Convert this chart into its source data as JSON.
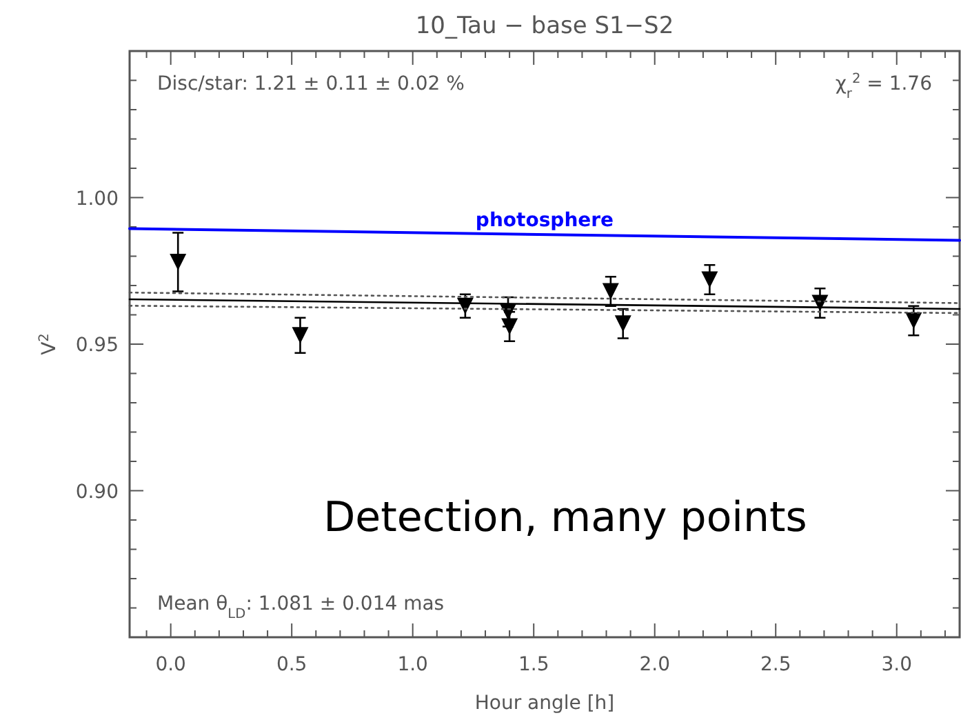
{
  "chart_data": {
    "type": "scatter",
    "title": "10_Tau − base S1−S2",
    "xlabel": "Hour angle [h]",
    "ylabel": "V$^{2}$",
    "xlim": [
      -0.17,
      3.26
    ],
    "ylim": [
      0.85,
      1.05
    ],
    "xticks": [
      {
        "value": -0.1,
        "label": null
      },
      {
        "value": 0,
        "label": "0.0"
      },
      {
        "value": 0.1,
        "label": null
      },
      {
        "value": 0.2,
        "label": null
      },
      {
        "value": 0.3,
        "label": null
      },
      {
        "value": 0.4,
        "label": null
      },
      {
        "value": 0.5,
        "label": "0.5"
      },
      {
        "value": 0.6,
        "label": null
      },
      {
        "value": 0.7,
        "label": null
      },
      {
        "value": 0.8,
        "label": null
      },
      {
        "value": 0.9,
        "label": null
      },
      {
        "value": 1,
        "label": "1.0"
      },
      {
        "value": 1.1,
        "label": null
      },
      {
        "value": 1.2,
        "label": null
      },
      {
        "value": 1.3,
        "label": null
      },
      {
        "value": 1.4,
        "label": null
      },
      {
        "value": 1.5,
        "label": "1.5"
      },
      {
        "value": 1.6,
        "label": null
      },
      {
        "value": 1.7,
        "label": null
      },
      {
        "value": 1.8,
        "label": null
      },
      {
        "value": 1.9,
        "label": null
      },
      {
        "value": 2,
        "label": "2.0"
      },
      {
        "value": 2.1,
        "label": null
      },
      {
        "value": 2.2,
        "label": null
      },
      {
        "value": 2.3,
        "label": null
      },
      {
        "value": 2.4,
        "label": null
      },
      {
        "value": 2.5,
        "label": "2.5"
      },
      {
        "value": 2.6,
        "label": null
      },
      {
        "value": 2.7,
        "label": null
      },
      {
        "value": 2.8,
        "label": null
      },
      {
        "value": 2.9,
        "label": null
      },
      {
        "value": 3,
        "label": "3.0"
      },
      {
        "value": 3.1,
        "label": null
      },
      {
        "value": 3.2,
        "label": null
      }
    ],
    "yticks": [
      {
        "value": 0.86,
        "label": null
      },
      {
        "value": 0.87,
        "label": null
      },
      {
        "value": 0.88,
        "label": null
      },
      {
        "value": 0.89,
        "label": null
      },
      {
        "value": 0.9,
        "label": "0.90"
      },
      {
        "value": 0.91,
        "label": null
      },
      {
        "value": 0.92,
        "label": null
      },
      {
        "value": 0.93,
        "label": null
      },
      {
        "value": 0.94,
        "label": null
      },
      {
        "value": 0.95,
        "label": "0.95"
      },
      {
        "value": 0.96,
        "label": null
      },
      {
        "value": 0.97,
        "label": null
      },
      {
        "value": 0.98,
        "label": null
      },
      {
        "value": 0.99,
        "label": null
      },
      {
        "value": 1,
        "label": "1.00"
      },
      {
        "value": 1.01,
        "label": null
      },
      {
        "value": 1.02,
        "label": null
      },
      {
        "value": 1.03,
        "label": null
      },
      {
        "value": 1.04,
        "label": null
      }
    ],
    "grid": false,
    "series": [
      {
        "marker": "triangle",
        "color": "#000000",
        "x": [
          0.03,
          0.535,
          1.217,
          1.394,
          1.4,
          1.818,
          1.869,
          2.227,
          2.683,
          3.07
        ],
        "values": [
          0.978,
          0.953,
          0.963,
          0.961,
          0.956,
          0.968,
          0.957,
          0.972,
          0.964,
          0.958
        ],
        "errors": [
          0.01,
          0.006,
          0.004,
          0.005,
          0.005,
          0.005,
          0.005,
          0.005,
          0.005,
          0.005
        ]
      },
      {
        "type": "line",
        "color": "#000000",
        "line_style": "solid",
        "x": [
          -0.17,
          3.26
        ],
        "values": [
          0.9653,
          0.962
        ]
      },
      {
        "type": "line",
        "color": "#555555",
        "line_style": "dotted",
        "x": [
          -0.17,
          3.26
        ],
        "values": [
          0.9676,
          0.964
        ]
      },
      {
        "type": "line",
        "color": "#555555",
        "line_style": "dotted",
        "x": [
          -0.17,
          3.26
        ],
        "values": [
          0.9631,
          0.9606
        ]
      },
      {
        "type": "line",
        "name": "photosphere",
        "color": "#0000ff",
        "line_style": "solid",
        "x": [
          -0.17,
          3.26
        ],
        "values": [
          0.9894,
          0.9854
        ]
      }
    ],
    "annotations": [
      "Disc/star:  1.21 ± 0.11 ± 0.02 %",
      "χ$_{r}$$^{2}$ =  1.76",
      "Mean θ$_{LD}$: 1.081 ± 0.014 mas",
      "Detection, many points"
    ]
  }
}
